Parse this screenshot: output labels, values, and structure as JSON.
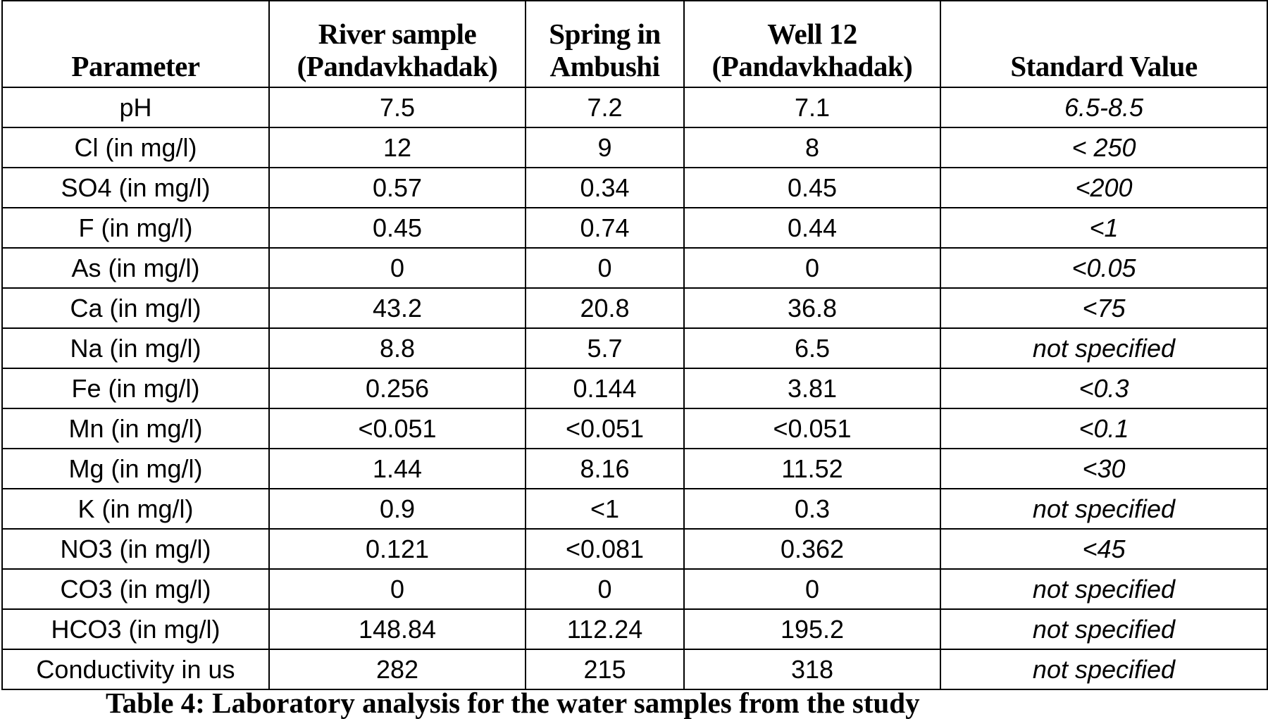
{
  "table": {
    "header": [
      "Parameter",
      "River sample (Pandavkhadak)",
      "Spring in Ambushi",
      "Well 12 (Pandavkhadak)",
      "Standard Value"
    ],
    "rows": [
      [
        "pH",
        "7.5",
        "7.2",
        "7.1",
        "6.5-8.5"
      ],
      [
        "Cl (in mg/l)",
        "12",
        "9",
        "8",
        "< 250"
      ],
      [
        "SO4 (in mg/l)",
        "0.57",
        "0.34",
        "0.45",
        "<200"
      ],
      [
        "F (in mg/l)",
        "0.45",
        "0.74",
        "0.44",
        "<1"
      ],
      [
        "As (in mg/l)",
        "0",
        "0",
        "0",
        "<0.05"
      ],
      [
        "Ca (in mg/l)",
        "43.2",
        "20.8",
        "36.8",
        "<75"
      ],
      [
        "Na (in mg/l)",
        "8.8",
        "5.7",
        "6.5",
        "not specified"
      ],
      [
        "Fe (in mg/l)",
        "0.256",
        "0.144",
        "3.81",
        "<0.3"
      ],
      [
        "Mn (in mg/l)",
        "<0.051",
        "<0.051",
        "<0.051",
        "<0.1"
      ],
      [
        "Mg (in mg/l)",
        "1.44",
        "8.16",
        "11.52",
        "<30"
      ],
      [
        "K  (in mg/l)",
        "0.9",
        "<1",
        "0.3",
        "not specified"
      ],
      [
        "NO3 (in mg/l)",
        "0.121",
        "<0.081",
        "0.362",
        "<45"
      ],
      [
        "CO3 (in mg/l)",
        "0",
        "0",
        "0",
        "not specified"
      ],
      [
        "HCO3 (in mg/l)",
        "148.84",
        "112.24",
        "195.2",
        "not specified"
      ],
      [
        "Conductivity in us",
        "282",
        "215",
        "318",
        "not specified"
      ]
    ]
  },
  "caption": "Table 4: Laboratory analysis for the water samples from the study"
}
